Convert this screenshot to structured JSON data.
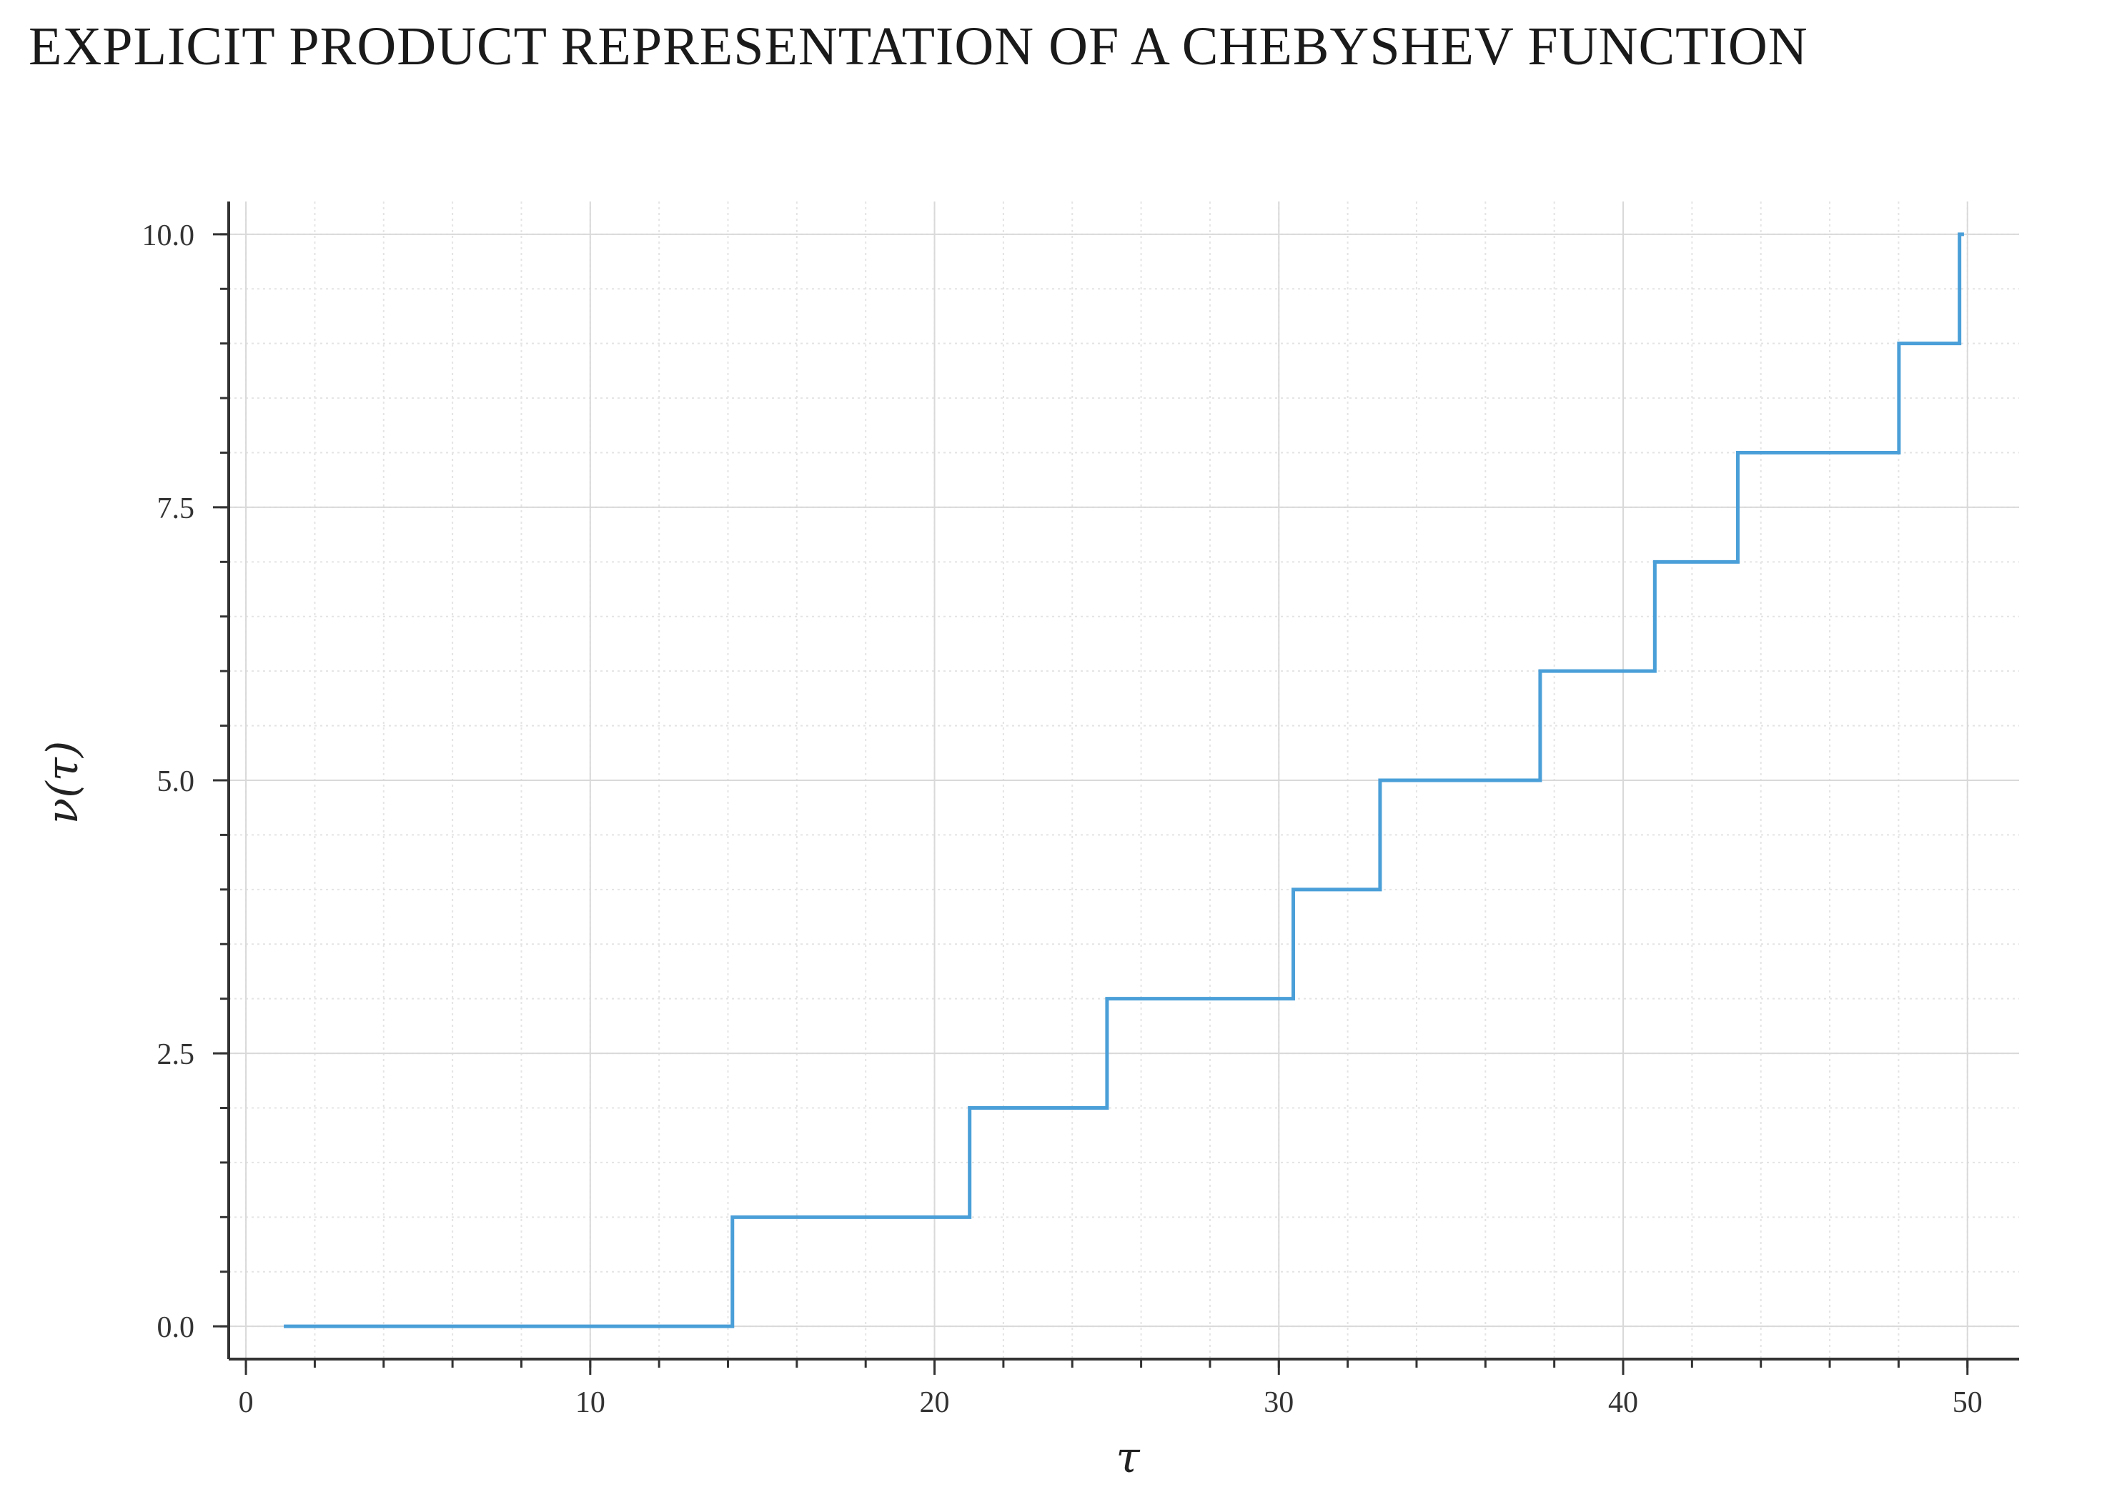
{
  "page": {
    "title": "EXPLICIT PRODUCT REPRESENTATION OF A CHEBYSHEV FUNCTION"
  },
  "chart_data": {
    "type": "line",
    "line_shape": "step",
    "xlabel": "τ",
    "ylabel": "ν(τ)",
    "xlim": [
      -0.5,
      51.5
    ],
    "ylim": [
      -0.3,
      10.3
    ],
    "x_ticks": [
      0,
      10,
      20,
      30,
      40,
      50
    ],
    "x_tick_labels": [
      "0",
      "10",
      "20",
      "30",
      "40",
      "50"
    ],
    "y_ticks": [
      0,
      2.5,
      5,
      7.5,
      10
    ],
    "y_tick_labels": [
      "0.0",
      "2.5",
      "5.0",
      "7.5",
      "10.0"
    ],
    "grid": true,
    "legend": "none",
    "colors": {
      "series": "#4a9fd8",
      "grid": "#d9d9d9",
      "axis": "#333333"
    },
    "series": [
      {
        "x": [
          1.1,
          14.13,
          21.02,
          25.01,
          30.42,
          32.94,
          37.59,
          40.92,
          43.33,
          48.01,
          49.77,
          49.9
        ],
        "y": [
          0,
          1,
          2,
          3,
          4,
          5,
          6,
          7,
          8,
          9,
          10,
          10
        ]
      }
    ]
  }
}
